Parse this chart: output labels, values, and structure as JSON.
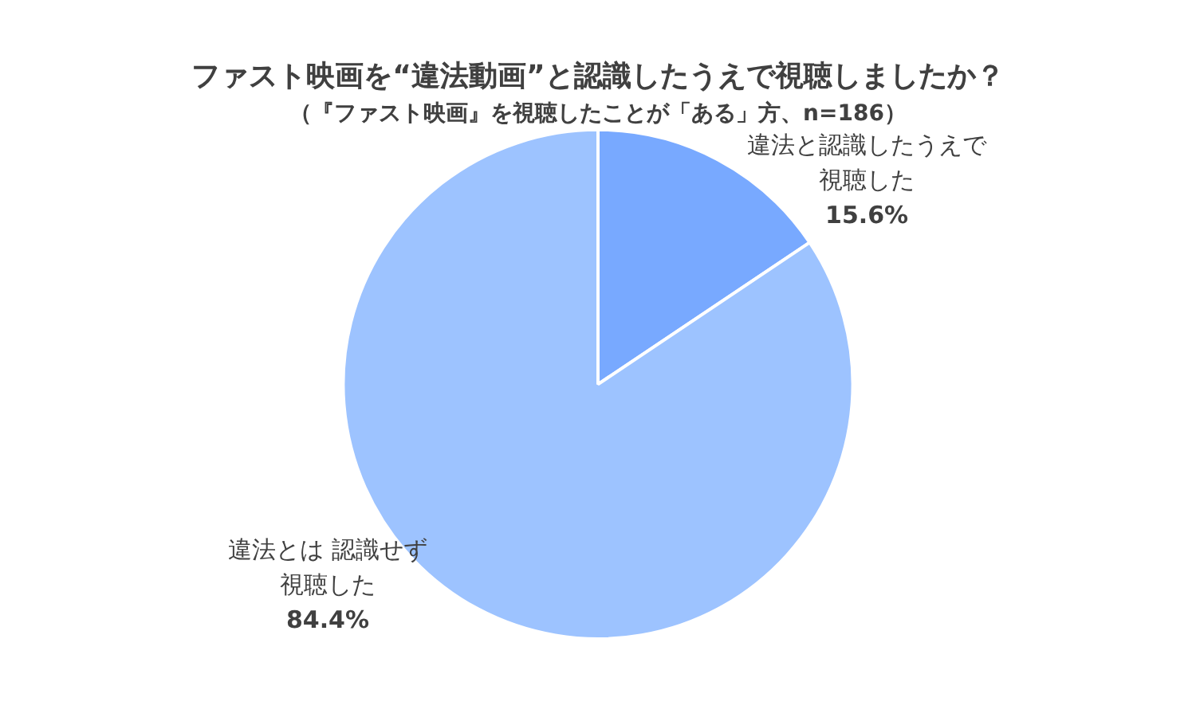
{
  "chart_data": {
    "type": "pie",
    "title": "ファスト映画を“違法動画”と認識したうえで視聴しましたか？",
    "subtitle": "（『ファスト映画』を視聴したことが「ある」方、n=186）",
    "categories": [
      "違法と認識したうえで視聴した",
      "違法とは 認識せず視聴した"
    ],
    "values": [
      15.6,
      84.4
    ],
    "value_labels": [
      "15.6%",
      "84.4%"
    ],
    "colors": [
      "#78a9ff",
      "#9dc3ff"
    ]
  }
}
